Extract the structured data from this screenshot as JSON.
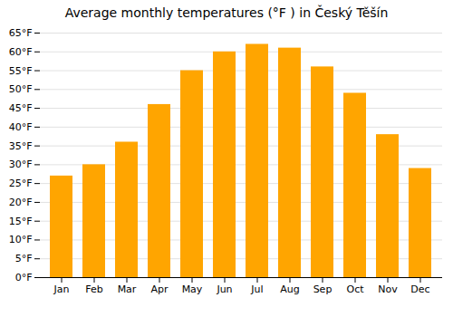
{
  "chart_data": {
    "type": "bar",
    "title": "Average monthly temperatures (°F ) in Český Těšín",
    "categories": [
      "Jan",
      "Feb",
      "Mar",
      "Apr",
      "May",
      "Jun",
      "Jul",
      "Aug",
      "Sep",
      "Oct",
      "Nov",
      "Dec"
    ],
    "values": [
      27,
      30,
      36,
      46,
      55,
      60,
      62,
      61,
      56,
      49,
      38,
      29
    ],
    "color": "#FFA500",
    "ylim": [
      0,
      65
    ],
    "yticks": [
      {
        "value": 0,
        "label": "0°F"
      },
      {
        "value": 5,
        "label": "5°F"
      },
      {
        "value": 10,
        "label": "10°F"
      },
      {
        "value": 15,
        "label": "15°F"
      },
      {
        "value": 20,
        "label": "20°F"
      },
      {
        "value": 25,
        "label": "25°F"
      },
      {
        "value": 30,
        "label": "30°F"
      },
      {
        "value": 35,
        "label": "35°F"
      },
      {
        "value": 40,
        "label": "40°F"
      },
      {
        "value": 45,
        "label": "45°F"
      },
      {
        "value": 50,
        "label": "50°F"
      },
      {
        "value": 55,
        "label": "55°F"
      },
      {
        "value": 60,
        "label": "60°F"
      },
      {
        "value": 65,
        "label": "65°F"
      }
    ],
    "grid": true
  }
}
